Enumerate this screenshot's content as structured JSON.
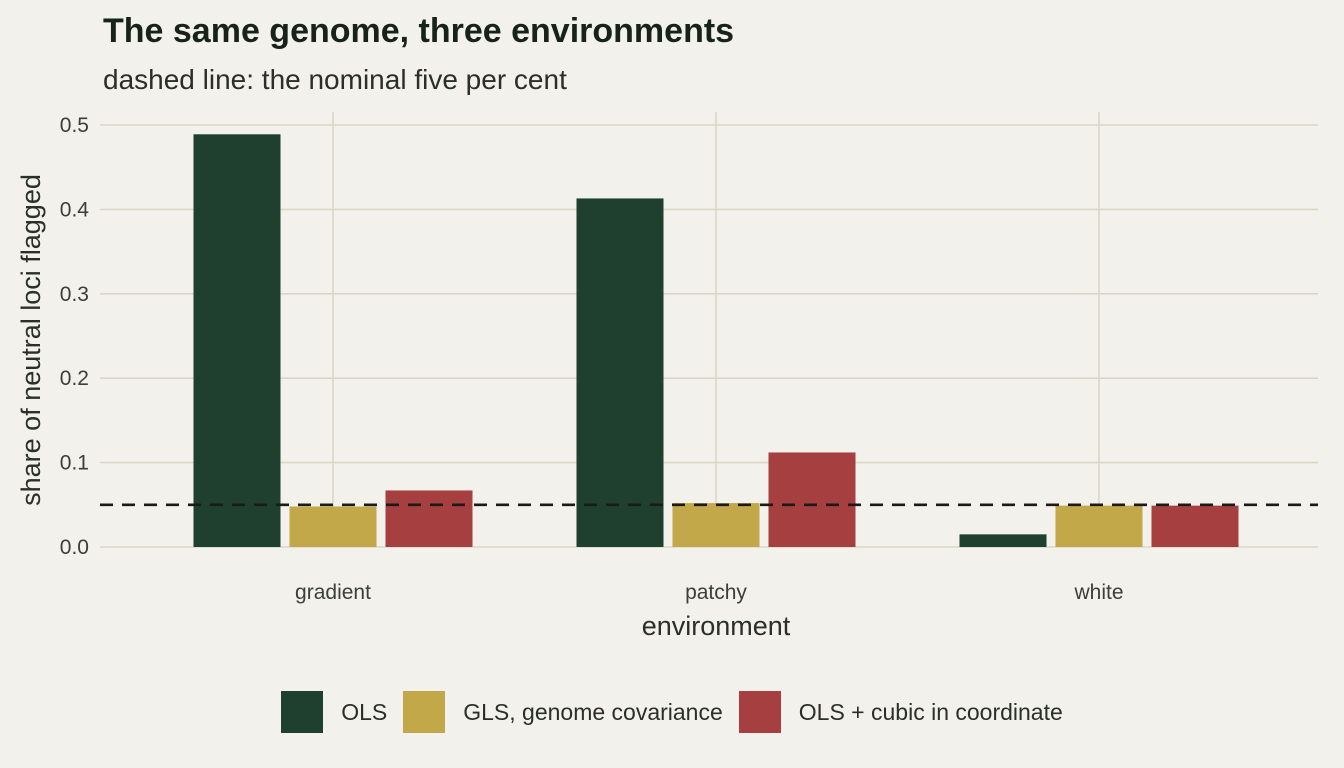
{
  "title": "The same genome, three environments",
  "subtitle": "dashed line: the nominal five per cent",
  "chart_data": {
    "type": "bar",
    "categories": [
      "gradient",
      "patchy",
      "white"
    ],
    "series": [
      {
        "name": "OLS",
        "color": "#1f402e",
        "values": [
          0.489,
          0.413,
          0.015
        ]
      },
      {
        "name": "GLS, genome covariance",
        "color": "#c2a848",
        "values": [
          0.048,
          0.052,
          0.049
        ]
      },
      {
        "name": "OLS + cubic in coordinate",
        "color": "#a63f3f",
        "values": [
          0.067,
          0.112,
          0.049
        ]
      }
    ],
    "reference_line": {
      "value": 0.05,
      "style": "dashed"
    },
    "xlabel": "environment",
    "ylabel": "share of neutral loci flagged",
    "ylim": [
      0,
      0.5
    ],
    "yticks": [
      "0.0",
      "0.1",
      "0.2",
      "0.3",
      "0.4",
      "0.5"
    ],
    "grid": true,
    "legend_position": "bottom"
  }
}
